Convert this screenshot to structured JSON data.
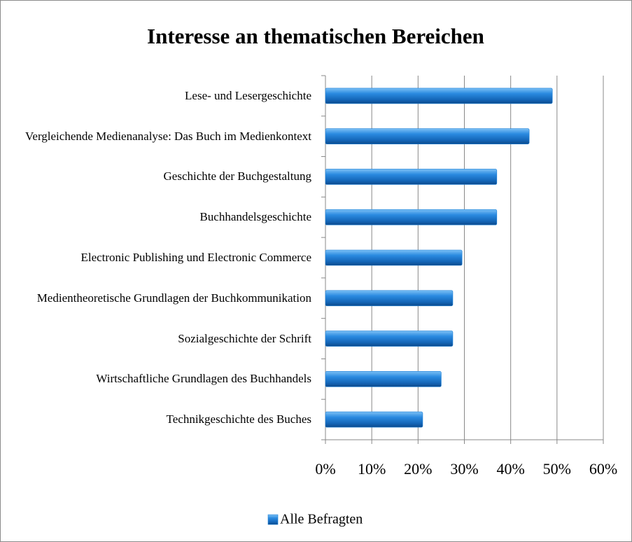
{
  "chart_data": {
    "type": "bar",
    "orientation": "horizontal",
    "title": "Interesse an thematischen Bereichen",
    "categories": [
      "Lese- und Lesergeschichte",
      "Vergleichende Medienanalyse: Das Buch im Medienkontext",
      "Geschichte der Buchgestaltung",
      "Buchhandelsgeschichte",
      "Electronic Publishing und Electronic Commerce",
      "Medientheoretische Grundlagen der Buchkommunikation",
      "Sozialgeschichte der Schrift",
      "Wirtschaftliche Grundlagen des Buchhandels",
      "Technikgeschichte des Buches"
    ],
    "series": [
      {
        "name": "Alle Befragten",
        "color": "#1b7fd6",
        "values": [
          49,
          44,
          37,
          37,
          29.5,
          27.5,
          27.5,
          25,
          21
        ]
      }
    ],
    "xlim": [
      0,
      60
    ],
    "xticks": [
      {
        "value": 0,
        "label": "0%"
      },
      {
        "value": 10,
        "label": "10%"
      },
      {
        "value": 20,
        "label": "20%"
      },
      {
        "value": 30,
        "label": "30%"
      },
      {
        "value": 40,
        "label": "40%"
      },
      {
        "value": 50,
        "label": "50%"
      },
      {
        "value": 60,
        "label": "60%"
      }
    ],
    "grid": true,
    "legend": "bottom"
  }
}
